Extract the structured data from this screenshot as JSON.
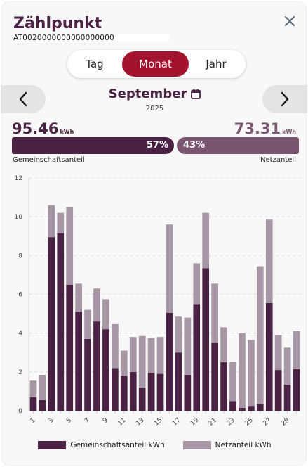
{
  "header": {
    "title": "Zählpunkt",
    "meter_id": "AT0020000000000000000"
  },
  "period_tabs": [
    {
      "label": "Tag",
      "active": false
    },
    {
      "label": "Monat",
      "active": true
    },
    {
      "label": "Jahr",
      "active": false
    }
  ],
  "period": {
    "month": "September",
    "year": "2025"
  },
  "summary": {
    "community": {
      "value": "95.46",
      "unit": "kWh",
      "percent": "57%",
      "label": "Gemeinschaftsanteil"
    },
    "grid": {
      "value": "73.31",
      "unit": "kWh",
      "percent": "43%",
      "label": "Netzanteil"
    }
  },
  "colors": {
    "accent": "#a3132d",
    "community": "#4a2244",
    "grid": "#a797a5",
    "grid_bar": "#7a5570"
  },
  "icons": {
    "close": "close-icon",
    "prev": "chevron-left-icon",
    "next": "chevron-right-icon",
    "calendar": "calendar-icon"
  },
  "chart_data": {
    "type": "bar",
    "stacked": true,
    "categories": [
      "1",
      "2",
      "3",
      "4",
      "5",
      "6",
      "7",
      "8",
      "9",
      "10",
      "11",
      "12",
      "13",
      "14",
      "15",
      "16",
      "17",
      "18",
      "19",
      "20",
      "21",
      "22",
      "23",
      "24",
      "25",
      "26",
      "27",
      "28",
      "29",
      "30"
    ],
    "x_tick_labels": [
      "1",
      "3",
      "5",
      "7",
      "9",
      "11",
      "13",
      "15",
      "17",
      "19",
      "21",
      "23",
      "25",
      "27",
      "29"
    ],
    "ylim": [
      0,
      12
    ],
    "yticks": [
      0,
      2,
      4,
      6,
      8,
      10,
      12
    ],
    "grid": true,
    "legend_position": "bottom",
    "series": [
      {
        "name": "Gemeinschaftsanteil kWh",
        "values": [
          0.7,
          0.55,
          8.95,
          9.15,
          6.5,
          5.1,
          3.7,
          4.6,
          4.2,
          2.2,
          1.8,
          2.0,
          1.2,
          1.95,
          1.9,
          5.05,
          3.0,
          1.85,
          5.5,
          7.35,
          3.5,
          2.5,
          0.5,
          0.15,
          0.25,
          0.35,
          5.55,
          2.1,
          1.35,
          2.15
        ]
      },
      {
        "name": "Netzanteil kWh",
        "values": [
          0.85,
          1.3,
          1.65,
          1.05,
          4.0,
          1.45,
          1.5,
          1.7,
          1.55,
          2.3,
          1.3,
          1.8,
          2.65,
          1.8,
          1.9,
          4.55,
          1.85,
          2.95,
          2.1,
          2.85,
          3.05,
          1.8,
          2.0,
          3.85,
          3.4,
          7.1,
          4.3,
          1.8,
          1.9,
          1.95
        ]
      }
    ]
  }
}
